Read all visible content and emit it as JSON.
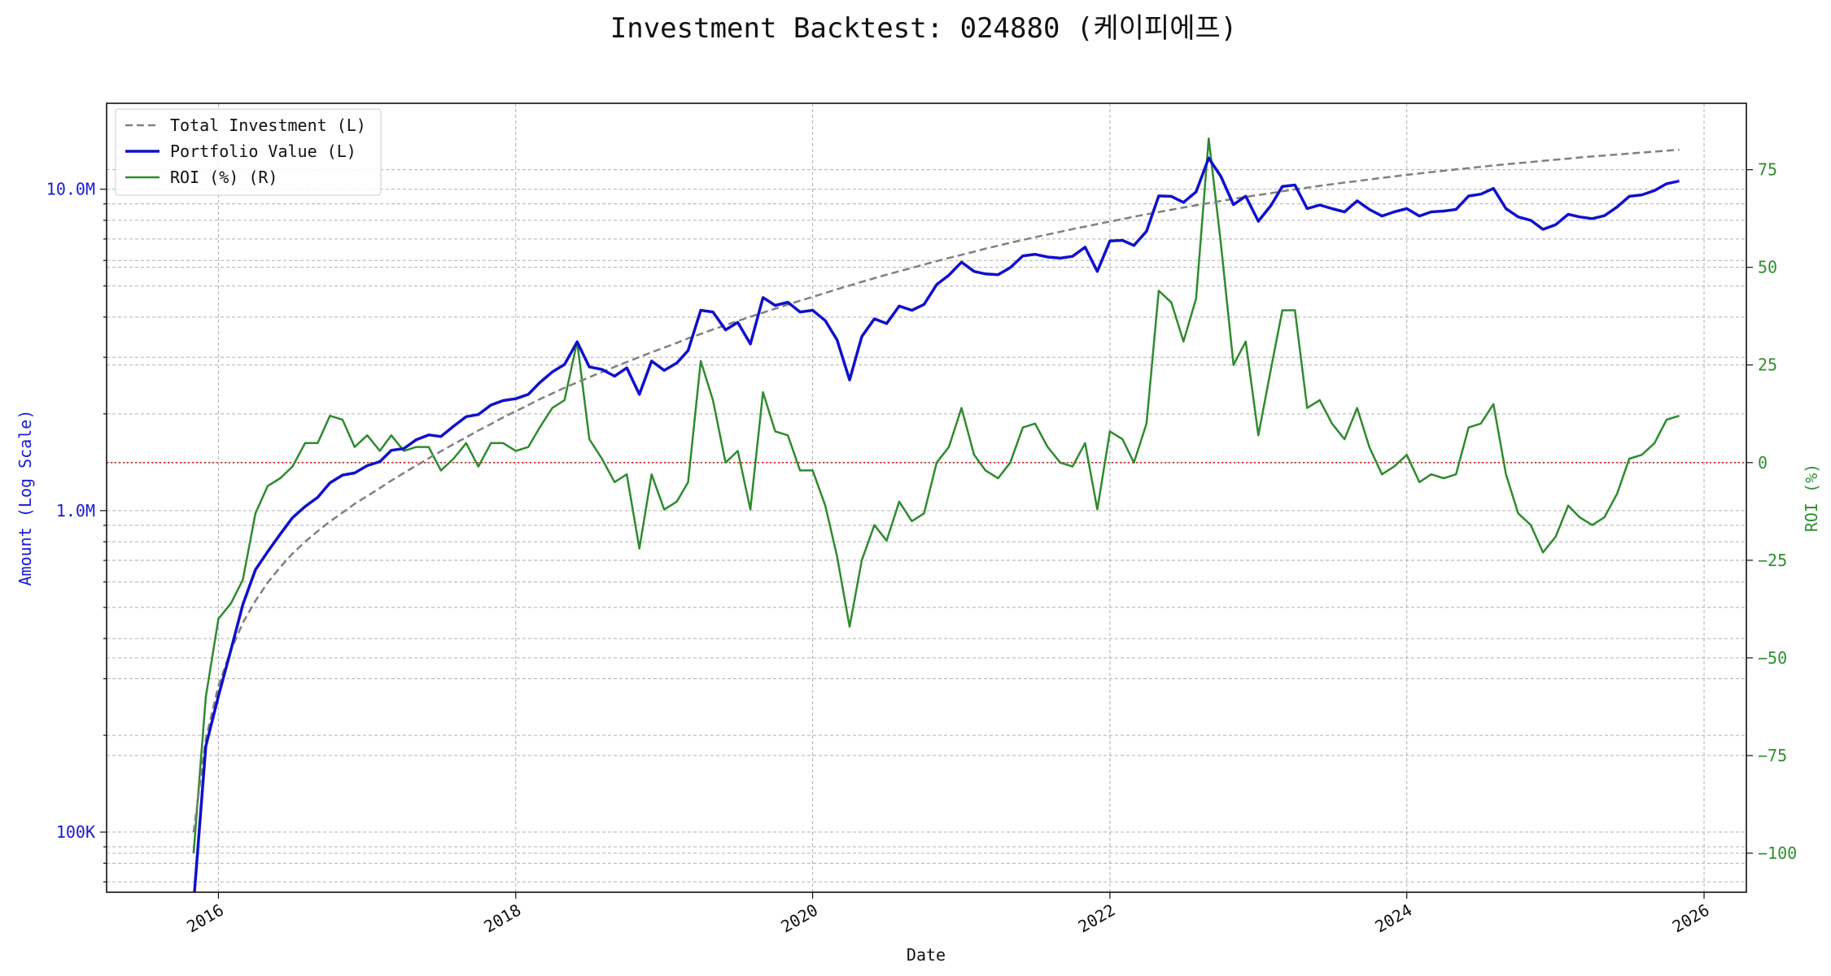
{
  "chart_data": {
    "type": "line",
    "title": "Investment Backtest: 024880 (케이피에프)",
    "xlabel": "Date",
    "ylabel_left": "Amount (Log Scale)",
    "ylabel_right": "ROI (%)",
    "y_left_scale": "log",
    "xlim": [
      "2015-04-01",
      "2026-04-15"
    ],
    "ylim_left": [
      65000,
      18500000
    ],
    "ylim_right": [
      -110,
      92
    ],
    "x_ticks": [
      "2016",
      "2018",
      "2020",
      "2022",
      "2024",
      "2026"
    ],
    "y_left_ticks": [
      {
        "value": 100000,
        "label": "100K"
      },
      {
        "value": 1000000,
        "label": "1.0M"
      },
      {
        "value": 10000000,
        "label": "10.0M"
      }
    ],
    "y_right_ticks": [
      {
        "value": 75,
        "label": "75"
      },
      {
        "value": 50,
        "label": "50"
      },
      {
        "value": 25,
        "label": "25"
      },
      {
        "value": 0,
        "label": "0"
      },
      {
        "value": -25,
        "label": "−25"
      },
      {
        "value": -50,
        "label": "−50"
      },
      {
        "value": -75,
        "label": "−75"
      },
      {
        "value": -100,
        "label": "−100"
      }
    ],
    "grid": true,
    "legend_position": "top-left",
    "reference_line": {
      "axis": "right",
      "value": 0,
      "color": "#d62728",
      "style": "dotted"
    },
    "x": [
      "2015-11-01",
      "2015-12-01",
      "2016-01-01",
      "2016-02-01",
      "2016-03-01",
      "2016-04-01",
      "2016-05-01",
      "2016-06-01",
      "2016-07-01",
      "2016-08-01",
      "2016-09-01",
      "2016-10-01",
      "2016-11-01",
      "2016-12-01",
      "2017-01-01",
      "2017-02-01",
      "2017-03-01",
      "2017-04-01",
      "2017-05-01",
      "2017-06-01",
      "2017-07-01",
      "2017-08-01",
      "2017-09-01",
      "2017-10-01",
      "2017-11-01",
      "2017-12-01",
      "2018-01-01",
      "2018-02-01",
      "2018-03-01",
      "2018-04-01",
      "2018-05-01",
      "2018-06-01",
      "2018-07-01",
      "2018-08-01",
      "2018-09-01",
      "2018-10-01",
      "2018-11-01",
      "2018-12-01",
      "2019-01-01",
      "2019-02-01",
      "2019-03-01",
      "2019-04-01",
      "2019-05-01",
      "2019-06-01",
      "2019-07-01",
      "2019-08-01",
      "2019-09-01",
      "2019-10-01",
      "2019-11-01",
      "2019-12-01",
      "2020-01-01",
      "2020-02-01",
      "2020-03-01",
      "2020-04-01",
      "2020-05-01",
      "2020-06-01",
      "2020-07-01",
      "2020-08-01",
      "2020-09-01",
      "2020-10-01",
      "2020-11-01",
      "2020-12-01",
      "2021-01-01",
      "2021-02-01",
      "2021-03-01",
      "2021-04-01",
      "2021-05-01",
      "2021-06-01",
      "2021-07-01",
      "2021-08-01",
      "2021-09-01",
      "2021-10-01",
      "2021-11-01",
      "2021-12-01",
      "2022-01-01",
      "2022-02-01",
      "2022-03-01",
      "2022-04-01",
      "2022-05-01",
      "2022-06-01",
      "2022-07-01",
      "2022-08-01",
      "2022-09-01",
      "2022-10-01",
      "2022-11-01",
      "2022-12-01",
      "2023-01-01",
      "2023-02-01",
      "2023-03-01",
      "2023-04-01",
      "2023-05-01",
      "2023-06-01",
      "2023-07-01",
      "2023-08-01",
      "2023-09-01",
      "2023-10-01",
      "2023-11-01",
      "2023-12-01",
      "2024-01-01",
      "2024-02-01",
      "2024-03-01",
      "2024-04-01",
      "2024-05-01",
      "2024-06-01",
      "2024-07-01",
      "2024-08-01",
      "2024-09-01",
      "2024-10-01",
      "2024-11-01",
      "2024-12-01",
      "2025-01-01",
      "2025-02-01",
      "2025-03-01",
      "2025-04-01",
      "2025-05-01",
      "2025-06-01",
      "2025-07-01",
      "2025-08-01",
      "2025-09-01",
      "2025-10-01",
      "2025-11-01"
    ],
    "series": [
      {
        "name": "Total Investment (L)",
        "axis": "left",
        "color": "#808080",
        "style": "dashed",
        "values": [
          100000,
          195000,
          285000,
          368000,
          448000,
          524000,
          597000,
          667000,
          735000,
          800000,
          863000,
          925000,
          985000,
          1050000,
          1110000,
          1175000,
          1240000,
          1310000,
          1380000,
          1455000,
          1530000,
          1610000,
          1690000,
          1775000,
          1860000,
          1950000,
          2040000,
          2130000,
          2220000,
          2315000,
          2410000,
          2505000,
          2600000,
          2700000,
          2800000,
          2900000,
          3005000,
          3110000,
          3215000,
          3325000,
          3435000,
          3545000,
          3660000,
          3775000,
          3890000,
          4010000,
          4130000,
          4250000,
          4375000,
          4500000,
          4625000,
          4755000,
          4885000,
          5015000,
          5150000,
          5285000,
          5420000,
          5555000,
          5690000,
          5830000,
          5970000,
          6110000,
          6250000,
          6390000,
          6530000,
          6670000,
          6810000,
          6950000,
          7090000,
          7230000,
          7370000,
          7510000,
          7650000,
          7790000,
          7930000,
          8070000,
          8210000,
          8350000,
          8490000,
          8630000,
          8770000,
          8910000,
          9050000,
          9190000,
          9330000,
          9460000,
          9590000,
          9720000,
          9850000,
          9980000,
          10110000,
          10240000,
          10360000,
          10480000,
          10600000,
          10720000,
          10840000,
          10960000,
          11080000,
          11190000,
          11300000,
          11410000,
          11520000,
          11630000,
          11740000,
          11850000,
          11950000,
          12050000,
          12150000,
          12250000,
          12350000,
          12450000,
          12550000,
          12640000,
          12730000,
          12820000,
          12910000,
          13000000,
          13090000,
          13180000,
          13270000
        ]
      },
      {
        "name": "Portfolio Value (L)",
        "axis": "left",
        "color": "#1010cc",
        "style": "solid",
        "values": [
          60000,
          185000,
          265000,
          370000,
          510000,
          655000,
          745000,
          845000,
          950000,
          1030000,
          1100000,
          1220000,
          1290000,
          1310000,
          1380000,
          1420000,
          1540000,
          1560000,
          1660000,
          1720000,
          1700000,
          1830000,
          1960000,
          1990000,
          2130000,
          2200000,
          2230000,
          2300000,
          2500000,
          2700000,
          2850000,
          3350000,
          2800000,
          2750000,
          2620000,
          2780000,
          2300000,
          2920000,
          2730000,
          2880000,
          3150000,
          4200000,
          4150000,
          3650000,
          3850000,
          3300000,
          4600000,
          4350000,
          4450000,
          4150000,
          4200000,
          3900000,
          3400000,
          2550000,
          3480000,
          3950000,
          3820000,
          4330000,
          4200000,
          4380000,
          5050000,
          5400000,
          5930000,
          5550000,
          5450000,
          5420000,
          5700000,
          6200000,
          6270000,
          6150000,
          6100000,
          6180000,
          6600000,
          5550000,
          6900000,
          6930000,
          6680000,
          7400000,
          9530000,
          9500000,
          9100000,
          9810000,
          12500000,
          10950000,
          8950000,
          9510000,
          7950000,
          8900000,
          10200000,
          10300000,
          8700000,
          8930000,
          8700000,
          8500000,
          9200000,
          8650000,
          8250000,
          8500000,
          8700000,
          8250000,
          8500000,
          8550000,
          8650000,
          9520000,
          9650000,
          10050000,
          8700000,
          8200000,
          8000000,
          7500000,
          7750000,
          8350000,
          8200000,
          8100000,
          8270000,
          8800000,
          9500000,
          9600000,
          9900000,
          10400000,
          10600000
        ]
      },
      {
        "name": "ROI (%) (R)",
        "axis": "right",
        "color": "#2e8b2e",
        "style": "solid",
        "values": [
          -100,
          -60,
          -40,
          -36,
          -30,
          -13,
          -6,
          -4,
          -1,
          5,
          5,
          12,
          11,
          4,
          7,
          3,
          7,
          3,
          4,
          4,
          -2,
          1,
          5,
          -1,
          5,
          5,
          3,
          4,
          9,
          14,
          16,
          31,
          6,
          1,
          -5,
          -3,
          -22,
          -3,
          -12,
          -10,
          -5,
          26,
          16,
          0,
          3,
          -12,
          18,
          8,
          7,
          -2,
          -2,
          -11,
          -24,
          -42,
          -25,
          -16,
          -20,
          -10,
          -15,
          -13,
          0,
          4,
          14,
          2,
          -2,
          -4,
          0,
          9,
          10,
          4,
          0,
          -1,
          5,
          -12,
          8,
          6,
          0,
          10,
          44,
          41,
          31,
          42,
          83,
          56,
          25,
          31,
          7,
          24,
          39,
          39,
          14,
          16,
          10,
          6,
          14,
          4,
          -3,
          -1,
          2,
          -5,
          -3,
          -4,
          -3,
          9,
          10,
          15,
          -3,
          -13,
          -16,
          -23,
          -19,
          -11,
          -14,
          -16,
          -14,
          -8,
          1,
          2,
          5,
          11,
          12
        ]
      }
    ]
  }
}
